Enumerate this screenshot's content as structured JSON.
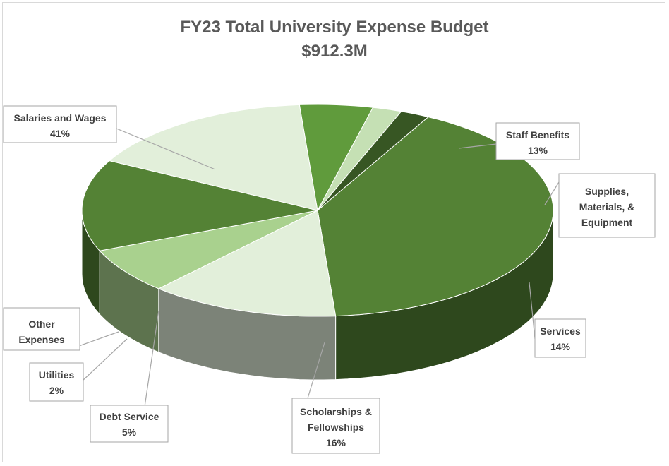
{
  "chart_data": {
    "type": "pie",
    "title": "FY23 Total University Expense Budget",
    "subtitle": "$912.3M",
    "legend": "none",
    "slices": [
      {
        "label": "Salaries and Wages",
        "percent_label": "41%",
        "value": 41,
        "color": "#548235"
      },
      {
        "label": "Staff Benefits",
        "percent_label": "13%",
        "value": 13,
        "color": "#e2efda"
      },
      {
        "label": "Supplies, Materials, & Equipment",
        "percent_label": "",
        "value": 7,
        "color": "#a9d18e"
      },
      {
        "label": "Services",
        "percent_label": "14%",
        "value": 14,
        "color": "#548235"
      },
      {
        "label": "Scholarships & Fellowships",
        "percent_label": "16%",
        "value": 16,
        "color": "#e2efda"
      },
      {
        "label": "Debt Service",
        "percent_label": "5%",
        "value": 5,
        "color": "#609b3c"
      },
      {
        "label": "Utilities",
        "percent_label": "2%",
        "value": 2,
        "color": "#c5e0b4"
      },
      {
        "label": "Other Expenses",
        "percent_label": "",
        "value": 2,
        "color": "#375623"
      }
    ]
  }
}
